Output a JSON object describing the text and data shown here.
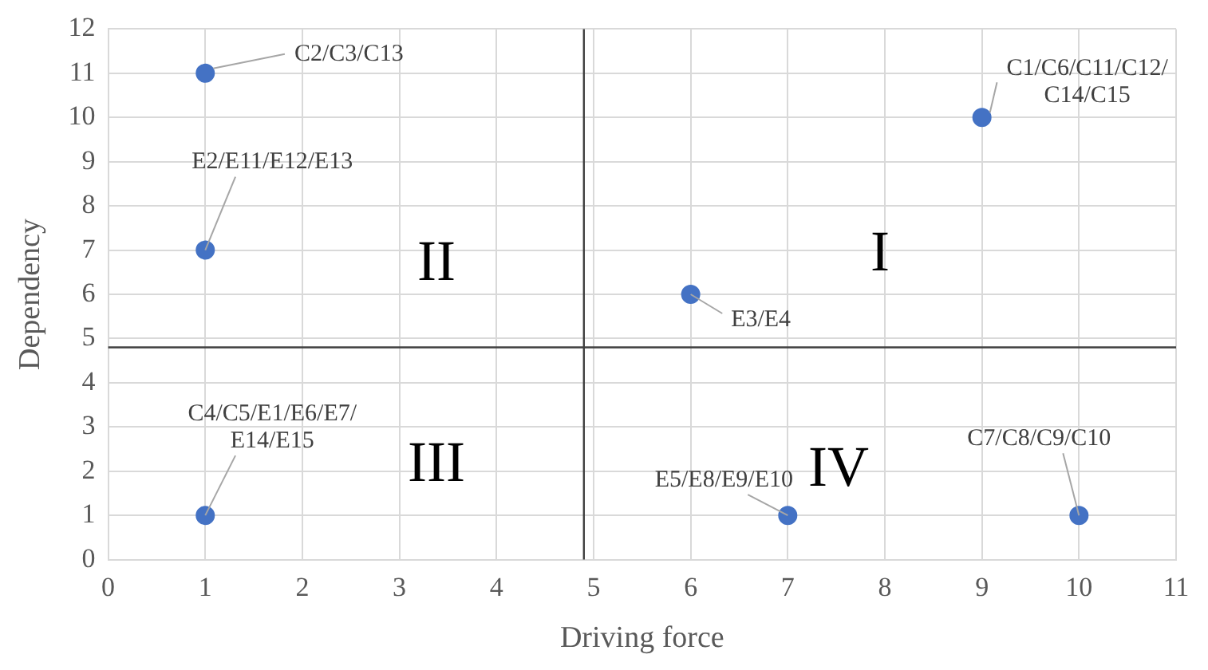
{
  "chart_data": {
    "type": "scatter",
    "xlabel": "Driving force",
    "ylabel": "Dependency",
    "series": [
      {
        "color": "#4472c4",
        "x": [
          1,
          9,
          1,
          6,
          1,
          7,
          10
        ],
        "values": [
          11,
          10,
          7,
          6,
          1,
          1,
          1
        ]
      }
    ],
    "xlim": [
      0,
      11
    ],
    "xticks": [
      0,
      1,
      2,
      3,
      4,
      5,
      6,
      7,
      8,
      9,
      10,
      11
    ],
    "ylim": [
      0,
      12
    ],
    "yticks": [
      0,
      1,
      2,
      3,
      4,
      5,
      6,
      7,
      8,
      9,
      10,
      11,
      12
    ],
    "grid": true,
    "legend": false,
    "marker": "circle",
    "ref_lines": [
      {
        "axis": "x",
        "value": 4.9,
        "color": "#404040"
      },
      {
        "axis": "y",
        "value": 4.8,
        "color": "#404040"
      }
    ],
    "annotations": [
      {
        "text": "C2/C3/C13",
        "x": 1,
        "y": 11
      },
      {
        "text": "C1/C6/C11/C12/C14/C15",
        "x": 9,
        "y": 10
      },
      {
        "text": "E2/E11/E12/E13",
        "x": 1,
        "y": 7
      },
      {
        "text": "E3/E4",
        "x": 6,
        "y": 6
      },
      {
        "text": "C4/C5/E1/E6/E7/E14/E15",
        "x": 1,
        "y": 1
      },
      {
        "text": "E5/E8/E9/E10",
        "x": 7,
        "y": 1
      },
      {
        "text": "C7/C8/C9/C10",
        "x": 10,
        "y": 1
      },
      "I",
      "II",
      "III",
      "IV"
    ]
  }
}
